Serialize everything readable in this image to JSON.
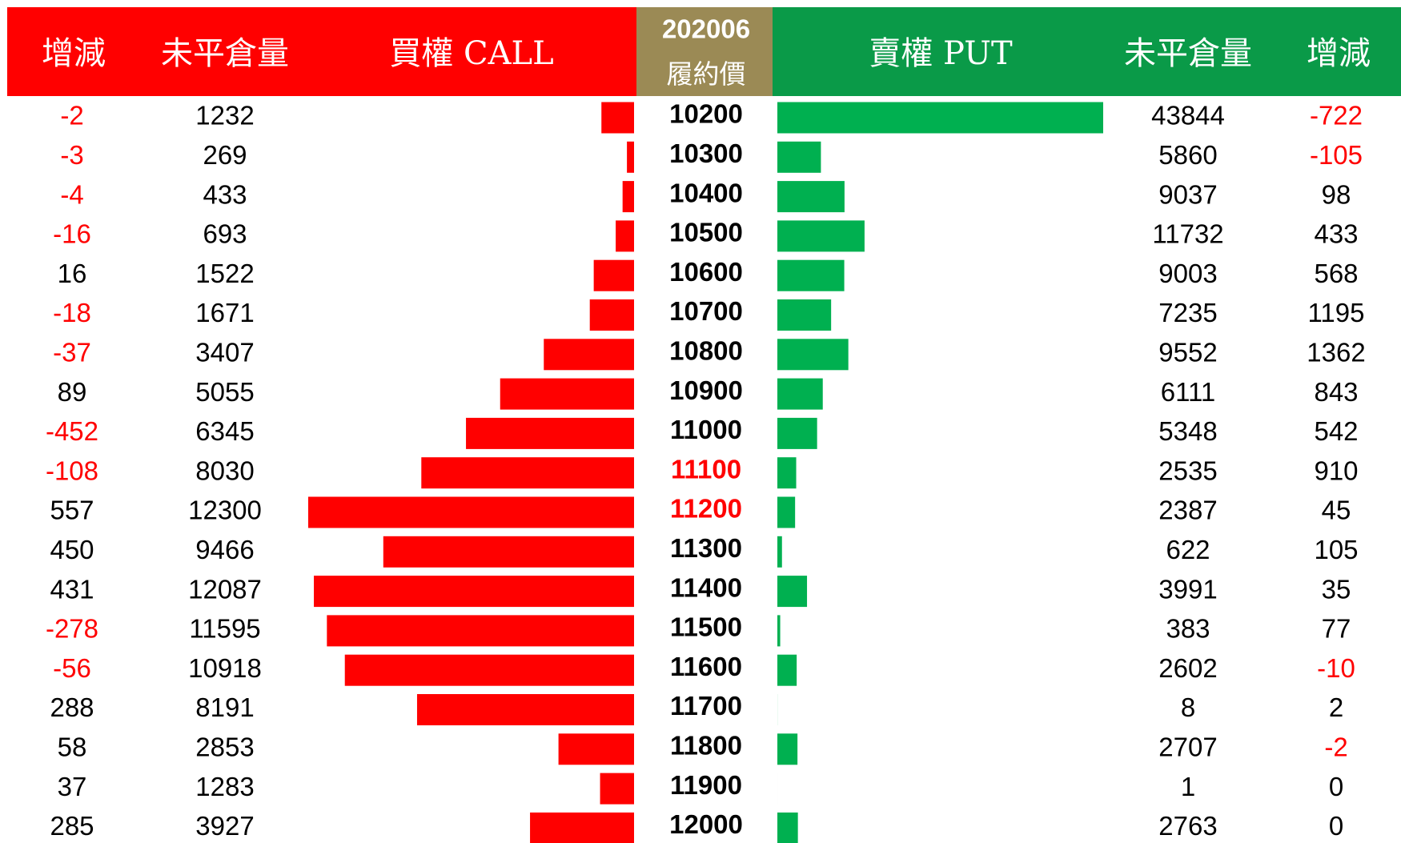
{
  "chart_data": {
    "type": "butterfly",
    "header": {
      "call_chg": "增減",
      "call_oi": "未平倉量",
      "month": "202006",
      "strike": "履約價",
      "put_oi": "未平倉量",
      "put_chg": "增減"
    },
    "categories": [
      10200,
      10300,
      10400,
      10500,
      10600,
      10700,
      10800,
      10900,
      11000,
      11100,
      11200,
      11300,
      11400,
      11500,
      11600,
      11700,
      11800,
      11900,
      12000
    ],
    "highlight": [
      false,
      false,
      false,
      false,
      false,
      false,
      false,
      false,
      false,
      true,
      true,
      false,
      false,
      false,
      false,
      false,
      false,
      false,
      false
    ],
    "highlight_color": "#ff0000",
    "negative_color": "#ff0000",
    "series": [
      {
        "name": "買權 CALL",
        "color": "#ff0000",
        "values": [
          1232,
          269,
          433,
          693,
          1522,
          1671,
          3407,
          5055,
          6345,
          8030,
          12300,
          9466,
          12087,
          11595,
          10918,
          8191,
          2853,
          1283,
          3927
        ],
        "changes": [
          -2,
          -3,
          -4,
          -16,
          16,
          -18,
          -37,
          89,
          -452,
          -108,
          557,
          450,
          431,
          -278,
          -56,
          288,
          58,
          37,
          285
        ]
      },
      {
        "name": "賣權 PUT",
        "color": "#00b050",
        "values": [
          43844,
          5860,
          9037,
          11732,
          9003,
          7235,
          9552,
          6111,
          5348,
          2535,
          2387,
          622,
          3991,
          383,
          2602,
          8,
          2707,
          1,
          2763
        ],
        "changes": [
          -722,
          -105,
          98,
          433,
          568,
          1195,
          1362,
          843,
          542,
          910,
          45,
          105,
          35,
          77,
          -10,
          2,
          -2,
          0,
          0
        ]
      }
    ]
  }
}
